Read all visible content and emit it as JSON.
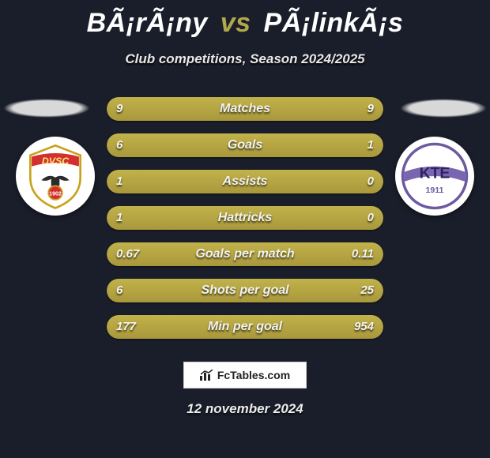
{
  "header": {
    "player1": "BÃ¡rÃ¡ny",
    "vs": "vs",
    "player2": "PÃ¡linkÃ¡s",
    "subtitle": "Club competitions, Season 2024/2025"
  },
  "badges": {
    "left": {
      "top_text": "DVSC",
      "bottom_text": "1902",
      "shield_fill": "#ffffff",
      "shield_stroke": "#c9a21a",
      "ribbon_fill": "#d42f2f",
      "bird_fill": "#2b2b2b"
    },
    "right": {
      "top_text": "KTE",
      "bottom_text": "1911",
      "circle_fill": "#ffffff",
      "circle_stroke": "#6d5aa2",
      "band_fill": "#7a66b0"
    }
  },
  "stats": {
    "bar_bg": "#3e3a2c",
    "fill_color": "#b4a542",
    "value_color": "#f5f5f0",
    "metric_color": "#f2f2f2",
    "rows": [
      {
        "metric": "Matches",
        "left": "9",
        "right": "9",
        "left_pct": 50,
        "right_pct": 50
      },
      {
        "metric": "Goals",
        "left": "6",
        "right": "1",
        "left_pct": 86,
        "right_pct": 14
      },
      {
        "metric": "Assists",
        "left": "1",
        "right": "0",
        "left_pct": 100,
        "right_pct": 0
      },
      {
        "metric": "Hattricks",
        "left": "1",
        "right": "0",
        "left_pct": 100,
        "right_pct": 0
      },
      {
        "metric": "Goals per match",
        "left": "0.67",
        "right": "0.11",
        "left_pct": 86,
        "right_pct": 14
      },
      {
        "metric": "Shots per goal",
        "left": "6",
        "right": "25",
        "left_pct": 19,
        "right_pct": 81
      },
      {
        "metric": "Min per goal",
        "left": "177",
        "right": "954",
        "left_pct": 16,
        "right_pct": 84
      }
    ]
  },
  "footer": {
    "brand": "FcTables.com",
    "date": "12 november 2024"
  }
}
